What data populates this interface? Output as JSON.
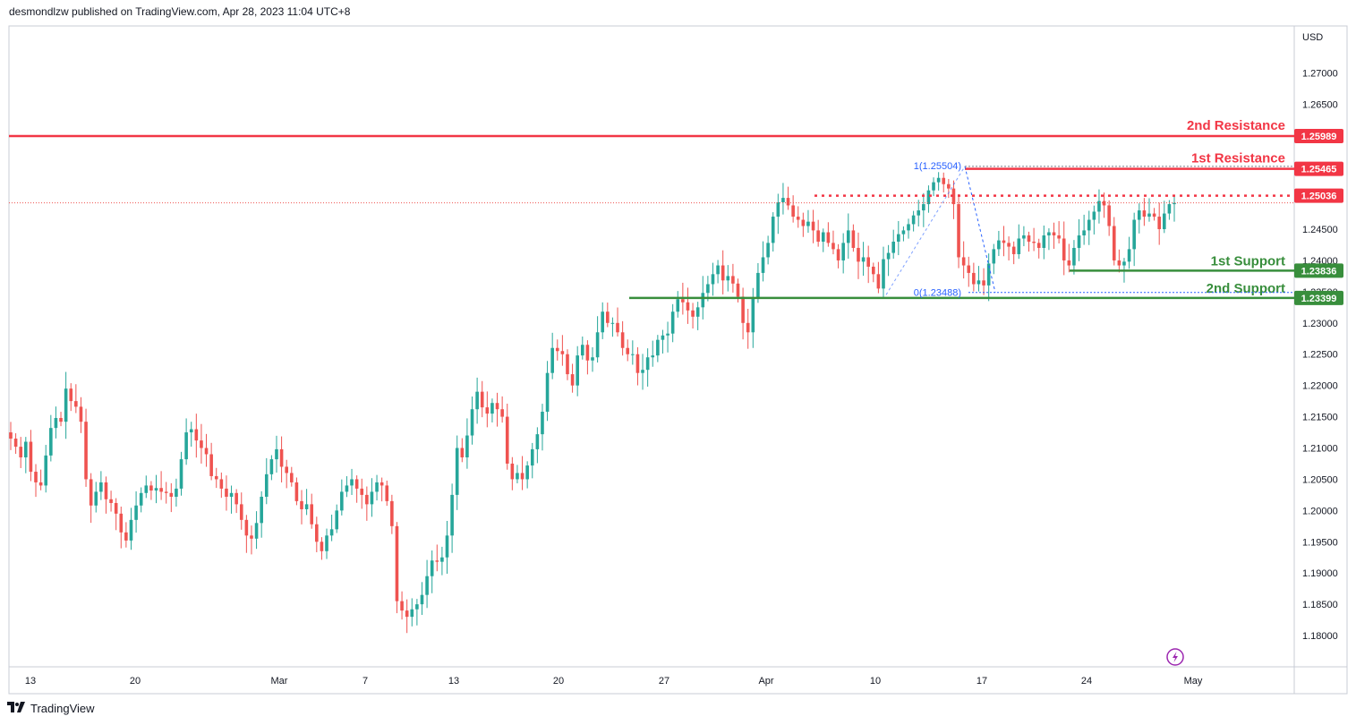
{
  "header": {
    "text": "desmondlzw published on TradingView.com, Apr 28, 2023 11:04 UTC+8"
  },
  "footer": {
    "logo_icon": "tradingview-logo-icon",
    "brand": "TradingView"
  },
  "colors": {
    "bull": "#26a69a",
    "bear": "#ef5350",
    "resistance": "#f23645",
    "support": "#388e3c",
    "fib": "#2962ff"
  },
  "chart_data": {
    "type": "candlestick",
    "currency": "USD",
    "ylim": [
      1.175,
      1.2775
    ],
    "y_ticks": [
      "1.18000",
      "1.18500",
      "1.19000",
      "1.19500",
      "1.20000",
      "1.20500",
      "1.21000",
      "1.21500",
      "1.22000",
      "1.22500",
      "1.23000",
      "1.23500",
      "1.24000",
      "1.24500",
      "1.25000",
      "1.25500",
      "1.26000",
      "1.26500",
      "1.27000"
    ],
    "x_ticks": [
      "13",
      "20",
      "Mar",
      "7",
      "13",
      "20",
      "27",
      "Apr",
      "10",
      "17",
      "24",
      "May"
    ],
    "last_price": 1.2492,
    "levels": [
      {
        "name": "2nd Resistance",
        "value": "1.25989",
        "kind": "resistance"
      },
      {
        "name": "1st Resistance",
        "value": "1.25465",
        "kind": "resistance"
      },
      {
        "name": "",
        "value": "1.25036",
        "kind": "resistance-dotted"
      },
      {
        "name": "1st Support",
        "value": "1.23836",
        "kind": "support"
      },
      {
        "name": "2nd Support",
        "value": "1.23399",
        "kind": "support"
      }
    ],
    "fib": [
      {
        "label": "1(1.25504)",
        "value": 1.25504
      },
      {
        "label": "0(1.23488)",
        "value": 1.23488
      }
    ],
    "closes": [
      1.2115,
      1.2102,
      1.2085,
      1.211,
      1.2062,
      1.2045,
      1.204,
      1.2088,
      1.2132,
      1.2148,
      1.2142,
      1.2195,
      1.2175,
      1.2166,
      1.2142,
      1.205,
      1.2008,
      1.203,
      1.2045,
      1.2018,
      1.2012,
      1.1995,
      1.1965,
      1.1952,
      1.1985,
      1.2008,
      1.2028,
      1.204,
      1.2032,
      1.2036,
      1.203,
      1.2028,
      1.2022,
      1.2035,
      1.2082,
      1.2125,
      1.213,
      1.2112,
      1.21,
      1.209,
      1.2055,
      1.205,
      1.2035,
      1.2022,
      1.2028,
      1.201,
      1.1985,
      1.196,
      1.1955,
      1.198,
      1.2022,
      1.2058,
      1.2082,
      1.2098,
      1.207,
      1.206,
      1.2045,
      1.2015,
      1.2002,
      1.201,
      1.1978,
      1.195,
      1.1935,
      1.196,
      1.197,
      1.2,
      1.203,
      1.204,
      1.205,
      1.2035,
      1.2025,
      1.201,
      1.203,
      1.2045,
      1.204,
      1.2015,
      1.1975,
      1.1855,
      1.184,
      1.183,
      1.1842,
      1.185,
      1.1865,
      1.1895,
      1.192,
      1.1918,
      1.1925,
      1.196,
      1.2025,
      1.21,
      1.2085,
      1.212,
      1.2162,
      1.219,
      1.2165,
      1.2155,
      1.2172,
      1.2162,
      1.215,
      1.2075,
      1.205,
      1.206,
      1.205,
      1.2072,
      1.2098,
      1.2122,
      1.2158,
      1.222,
      1.226,
      1.2255,
      1.225,
      1.2218,
      1.22,
      1.2248,
      1.2265,
      1.224,
      1.2245,
      1.2285,
      1.2318,
      1.23,
      1.23,
      1.2285,
      1.226,
      1.225,
      1.225,
      1.222,
      1.2225,
      1.2245,
      1.2248,
      1.2273,
      1.228,
      1.2283,
      1.2318,
      1.2338,
      1.2333,
      1.232,
      1.231,
      1.2325,
      1.2348,
      1.2362,
      1.2378,
      1.2392,
      1.2368,
      1.2375,
      1.2363,
      1.2342,
      1.23,
      1.2285,
      1.234,
      1.238,
      1.2405,
      1.2428,
      1.247,
      1.2493,
      1.25,
      1.2488,
      1.247,
      1.2465,
      1.2455,
      1.2462,
      1.2448,
      1.243,
      1.2445,
      1.2428,
      1.2418,
      1.24,
      1.2428,
      1.2448,
      1.242,
      1.2398,
      1.2405,
      1.239,
      1.2378,
      1.2355,
      1.2402,
      1.2412,
      1.243,
      1.2442,
      1.2448,
      1.2458,
      1.2472,
      1.248,
      1.249,
      1.2512,
      1.2525,
      1.2532,
      1.2522,
      1.2515,
      1.249,
      1.2405,
      1.2392,
      1.238,
      1.2362,
      1.2368,
      1.236,
      1.2395,
      1.2418,
      1.2432,
      1.2428,
      1.2422,
      1.241,
      1.2435,
      1.244,
      1.243,
      1.2428,
      1.242,
      1.244,
      1.2445,
      1.244,
      1.2435,
      1.24,
      1.2392,
      1.242,
      1.244,
      1.2448,
      1.2465,
      1.2478,
      1.2495,
      1.2488,
      1.2455,
      1.24,
      1.2392,
      1.2398,
      1.2418,
      1.2465,
      1.248,
      1.247,
      1.2475,
      1.247,
      1.245,
      1.2475,
      1.249,
      1.2492
    ]
  }
}
